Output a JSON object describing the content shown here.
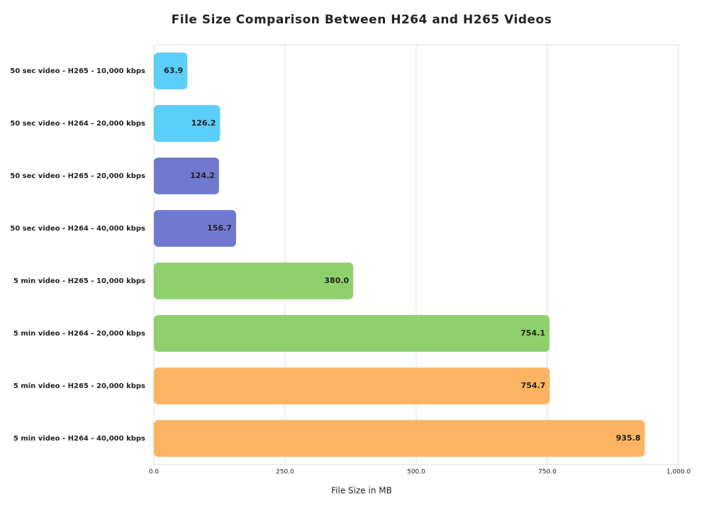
{
  "chart_data": {
    "type": "bar",
    "orientation": "horizontal",
    "title": "File Size Comparison Between H264 and H265 Videos",
    "x_label": "File Size in MB",
    "categories": [
      "50 sec video - H265 - 10,000 kbps",
      "50 sec video - H264 - 20,000 kbps",
      "50 sec video - H265 - 20,000 kbps",
      "50 sec video - H264 - 40,000 kbps",
      "5 min video - H265 - 10,000 kbps",
      "5 min video - H264 - 20,000 kbps",
      "5 min video - H265 - 20,000 kbps",
      "5 min video - H264 - 40,000 kbps"
    ],
    "values": [
      63.9,
      126.2,
      124.2,
      156.7,
      380.0,
      754.1,
      754.7,
      935.8
    ],
    "value_labels": [
      "63.9",
      "126.2",
      "124.2",
      "156.7",
      "380.0",
      "754.1",
      "754.7",
      "935.8"
    ],
    "colors": [
      "#5bcefa",
      "#5bcefa",
      "#7079d0",
      "#7079d0",
      "#8ed16c",
      "#8ed16c",
      "#fdb462",
      "#fdb462"
    ],
    "xlim": [
      0,
      1000
    ],
    "xticks": [
      {
        "value": 0,
        "label": "0.0"
      },
      {
        "value": 250,
        "label": "250.0"
      },
      {
        "value": 500,
        "label": "500.0"
      },
      {
        "value": 750,
        "label": "750.0"
      },
      {
        "value": 1000,
        "label": "1,000.0"
      }
    ],
    "grid": true
  }
}
